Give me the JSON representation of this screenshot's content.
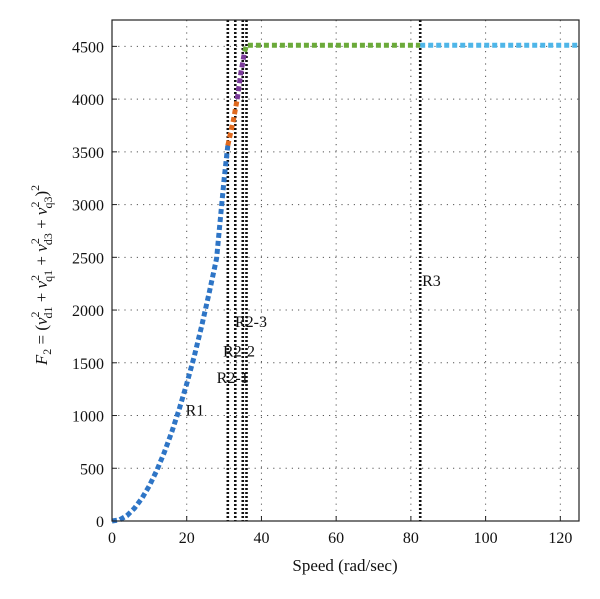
{
  "chart_data": {
    "type": "line",
    "title": "",
    "xlabel": "Speed (rad/sec)",
    "ylabel": "F_2 = (v_d1^2 + v_q1^2 + v_d3^2 + v_q3^2)^2",
    "ylabel_parts": {
      "lhs": "F",
      "lhs_sub": "2",
      "eq": " = (",
      "t1": "v",
      "t1_sup": "2",
      "t1_sub": "d1",
      "plus1": " + ",
      "t2": "v",
      "t2_sup": "2",
      "t2_sub": "q1",
      "plus2": " + ",
      "t3": "v",
      "t3_sup": "2",
      "t3_sub": "d3",
      "plus3": " + ",
      "t4": "v",
      "t4_sup": "2",
      "t4_sub": "q3",
      "close": ")",
      "outer_sup": "2"
    },
    "xlim": [
      0,
      125
    ],
    "ylim": [
      0,
      4750
    ],
    "x_ticks": [
      0,
      20,
      40,
      60,
      80,
      100,
      120
    ],
    "y_ticks": [
      0,
      500,
      1000,
      1500,
      2000,
      2500,
      3000,
      3500,
      4000,
      4500
    ],
    "grid": true,
    "series": [
      {
        "region": "R1",
        "color": "#2E75C6",
        "x": [
          0,
          2,
          4,
          6,
          8,
          10,
          12,
          14,
          16,
          18,
          20,
          22,
          24,
          26,
          28,
          30,
          31
        ],
        "y": [
          0,
          10,
          50,
          120,
          215,
          335,
          480,
          650,
          845,
          1060,
          1300,
          1560,
          1850,
          2160,
          2490,
          3240,
          3560
        ]
      },
      {
        "region": "R2-1",
        "color": "#E06A1F",
        "x": [
          31,
          32.5,
          33.5
        ],
        "y": [
          3560,
          3800,
          4000
        ]
      },
      {
        "region": "R2-2",
        "color": "#7B3A9A",
        "x": [
          33.5,
          34.5,
          35.5
        ],
        "y": [
          4000,
          4250,
          4450
        ]
      },
      {
        "region": "R2-3",
        "color": "#6BAA3A",
        "x": [
          35.5,
          36,
          50,
          60,
          70,
          82.5
        ],
        "y": [
          4450,
          4510,
          4510,
          4510,
          4510,
          4510
        ]
      },
      {
        "region": "R3",
        "color": "#4FB6E8",
        "x": [
          82.5,
          100,
          110,
          125
        ],
        "y": [
          4510,
          4510,
          4510,
          4510
        ]
      }
    ],
    "region_boundaries": [
      31,
      33,
      35,
      36,
      82.5
    ],
    "annotations": [
      {
        "text": "R1",
        "x": 22.2,
        "y": 1000
      },
      {
        "text": "R2-1",
        "x": 32.3,
        "y": 1310
      },
      {
        "text": "R2-2",
        "x": 34.0,
        "y": 1560
      },
      {
        "text": "R2-3",
        "x": 37.2,
        "y": 1840
      },
      {
        "text": "R3",
        "x": 85.5,
        "y": 2230
      }
    ]
  }
}
